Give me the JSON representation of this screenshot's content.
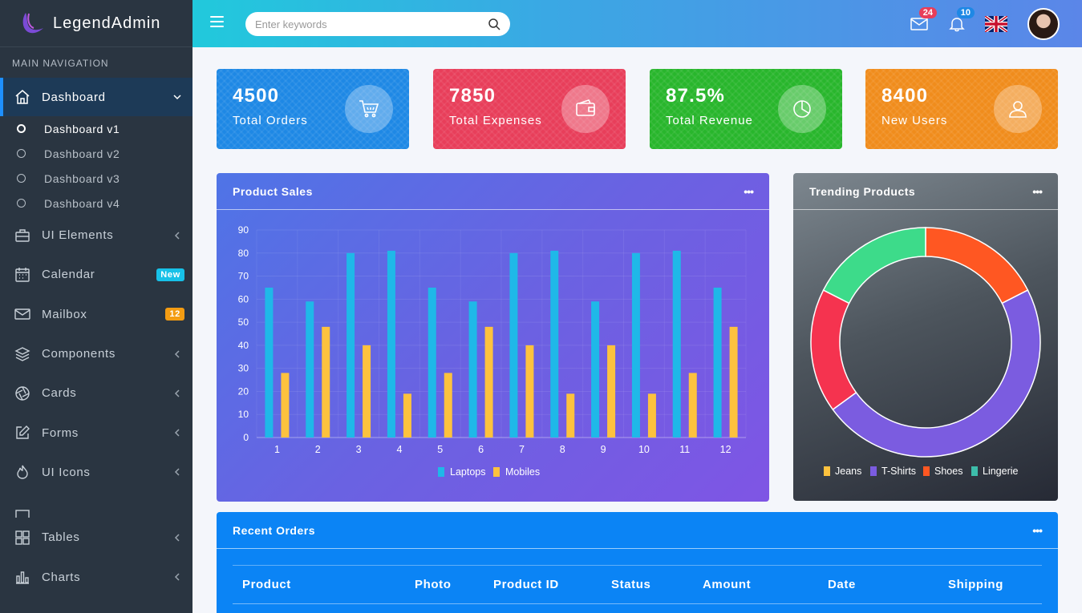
{
  "brand": {
    "name": "LegendAdmin"
  },
  "sidebar": {
    "header": "MAIN NAVIGATION",
    "dashboard": {
      "label": "Dashboard",
      "icon": "home-icon"
    },
    "sub_items": [
      "Dashboard v1",
      "Dashboard v2",
      "Dashboard v3",
      "Dashboard v4"
    ],
    "items": [
      {
        "label": "UI Elements",
        "icon": "briefcase-icon"
      },
      {
        "label": "Calendar",
        "icon": "calendar-icon",
        "badge": "New",
        "badge_color": "#17c1e8"
      },
      {
        "label": "Mailbox",
        "icon": "mail-icon",
        "badge": "12",
        "badge_color": "#f39c12"
      },
      {
        "label": "Components",
        "icon": "layers-icon"
      },
      {
        "label": "Cards",
        "icon": "aperture-icon"
      },
      {
        "label": "Forms",
        "icon": "edit-icon"
      },
      {
        "label": "UI Icons",
        "icon": "flame-icon"
      },
      {
        "label": "Tables",
        "icon": "grid-icon"
      },
      {
        "label": "Charts",
        "icon": "bar-chart-icon"
      }
    ]
  },
  "topbar": {
    "search_placeholder": "Enter keywords",
    "mail_count": "24",
    "notif_count": "10"
  },
  "stats": [
    {
      "value": "4500",
      "label": "Total Orders",
      "icon": "cart-icon",
      "color": "#1e88e5"
    },
    {
      "value": "7850",
      "label": "Total Expenses",
      "icon": "wallet-icon",
      "color": "#e83e5a"
    },
    {
      "value": "87.5%",
      "label": "Total Revenue",
      "icon": "pie-icon",
      "color": "#28b62c"
    },
    {
      "value": "8400",
      "label": "New Users",
      "icon": "user-icon",
      "color": "#f08c1c"
    }
  ],
  "product_sales": {
    "title": "Product Sales",
    "menu": "•••"
  },
  "trending": {
    "title": "Trending Products",
    "menu": "•••"
  },
  "recent_orders": {
    "title": "Recent Orders",
    "menu": "•••",
    "columns": [
      "Product",
      "Photo",
      "Product ID",
      "Status",
      "Amount",
      "Date",
      "Shipping"
    ]
  },
  "chart_data": [
    {
      "type": "bar",
      "categories": [
        "1",
        "2",
        "3",
        "4",
        "5",
        "6",
        "7",
        "8",
        "9",
        "10",
        "11",
        "12"
      ],
      "series": [
        {
          "name": "Laptops",
          "values": [
            65,
            59,
            80,
            81,
            65,
            59,
            80,
            81,
            59,
            80,
            81,
            65
          ],
          "color": "#1fb8e8"
        },
        {
          "name": "Mobiles",
          "values": [
            28,
            48,
            40,
            19,
            28,
            48,
            40,
            19,
            40,
            19,
            28,
            48
          ],
          "color": "#fdc23e"
        }
      ],
      "title": "Product Sales",
      "ylim": [
        0,
        90
      ],
      "yticks": [
        0,
        10,
        20,
        30,
        40,
        50,
        60,
        70,
        80,
        90
      ],
      "grid": true,
      "legend": "bottom"
    },
    {
      "type": "pie",
      "title": "Trending Products",
      "labels": [
        "Jeans",
        "T-Shirts",
        "Shoes",
        "Lingerie"
      ],
      "legend": "bottom",
      "slices": [
        {
          "label": "Shoes",
          "value": 17.5,
          "color": "#ff5722"
        },
        {
          "label": "T-Shirts",
          "value": 47.5,
          "color": "#7b5ce0"
        },
        {
          "label": "Jeans",
          "value": 17.5,
          "color": "#f5334f"
        },
        {
          "label": "Lingerie",
          "value": 17.5,
          "color": "#3ddb8a"
        }
      ],
      "legend_colors": [
        "#fdc23e",
        "#7b5ce0",
        "#ff5722",
        "#3dbdaa"
      ]
    }
  ]
}
